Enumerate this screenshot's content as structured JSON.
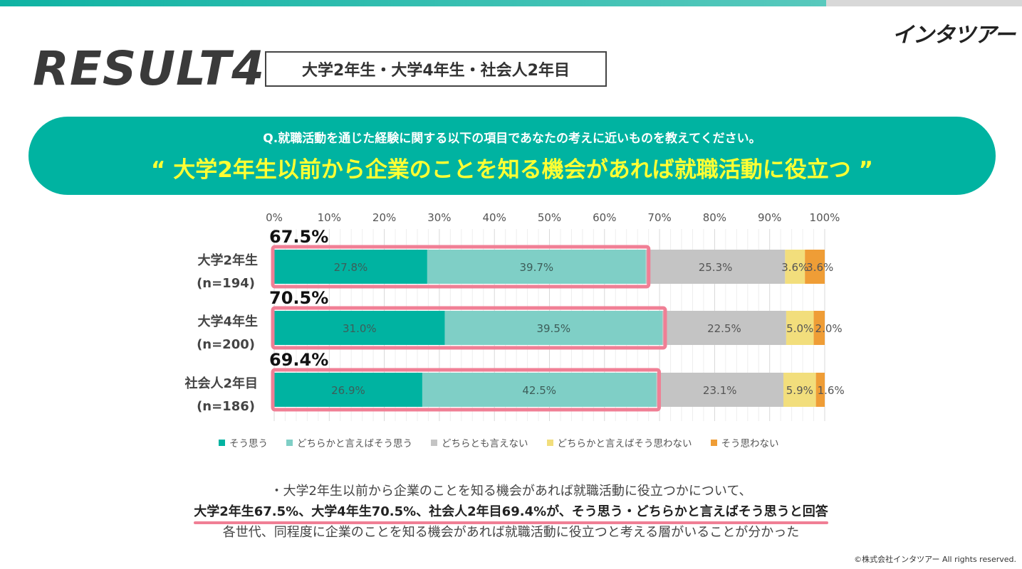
{
  "brand": {
    "logo_text": "インタツアー",
    "copyright": "©株式会社インタツアー All rights reserved."
  },
  "header": {
    "result_label": "RESULT4",
    "group_label": "大学2年生・大学4年生・社会人2年目"
  },
  "banner": {
    "question": "Q.就職活動を通じた経験に関する以下の項目であなたの考えに近いものを教えてください。",
    "statement": "“ 大学2年生以前から企業のことを知る機会があれば就職活動に役立つ ”"
  },
  "chart_data": {
    "type": "bar",
    "orientation": "horizontal",
    "stacked": true,
    "x_ticks": [
      "0%",
      "10%",
      "20%",
      "30%",
      "40%",
      "50%",
      "60%",
      "70%",
      "80%",
      "90%",
      "100%"
    ],
    "xlim": [
      0,
      100
    ],
    "categories": [
      {
        "name": "大学2年生",
        "n": "(n=194)",
        "total_label": "67.5%",
        "total": 67.5
      },
      {
        "name": "大学4年生",
        "n": "(n=200)",
        "total_label": "70.5%",
        "total": 70.5
      },
      {
        "name": "社会人2年目",
        "n": "(n=186)",
        "total_label": "69.4%",
        "total": 69.4
      }
    ],
    "series": [
      {
        "name": "そう思う",
        "color": "#00b3a1",
        "values": [
          27.8,
          31.0,
          26.9
        ],
        "labels": [
          "27.8%",
          "31.0%",
          "26.9%"
        ]
      },
      {
        "name": "どちらかと言えばそう思う",
        "color": "#7fcfc6",
        "values": [
          39.7,
          39.5,
          42.5
        ],
        "labels": [
          "39.7%",
          "39.5%",
          "42.5%"
        ]
      },
      {
        "name": "どちらとも言えない",
        "color": "#c4c4c4",
        "values": [
          25.3,
          22.5,
          23.1
        ],
        "labels": [
          "25.3%",
          "22.5%",
          "23.1%"
        ]
      },
      {
        "name": "どちらかと言えばそう思わない",
        "color": "#f2de7c",
        "values": [
          3.6,
          5.0,
          5.9
        ],
        "labels": [
          "3.6%",
          "5.0%",
          "5.9%"
        ]
      },
      {
        "name": "そう思わない",
        "color": "#ef9d36",
        "values": [
          3.6,
          2.0,
          1.6
        ],
        "labels": [
          "3.6%",
          "2.0%",
          "1.6%"
        ]
      }
    ],
    "highlight_color": "#f07f95",
    "grid": true,
    "legend_position": "bottom"
  },
  "summary": {
    "line1": "・大学2年生以前から企業のことを知る機会があれば就職活動に役立つかについて、",
    "line2": "大学2年生67.5%、大学4年生70.5%、社会人2年目69.4%が、そう思う・どちらかと言えばそう思うと回答",
    "line3": "各世代、同程度に企業のことを知る機会があれば就職活動に役立つと考える層がいることが分かった"
  }
}
